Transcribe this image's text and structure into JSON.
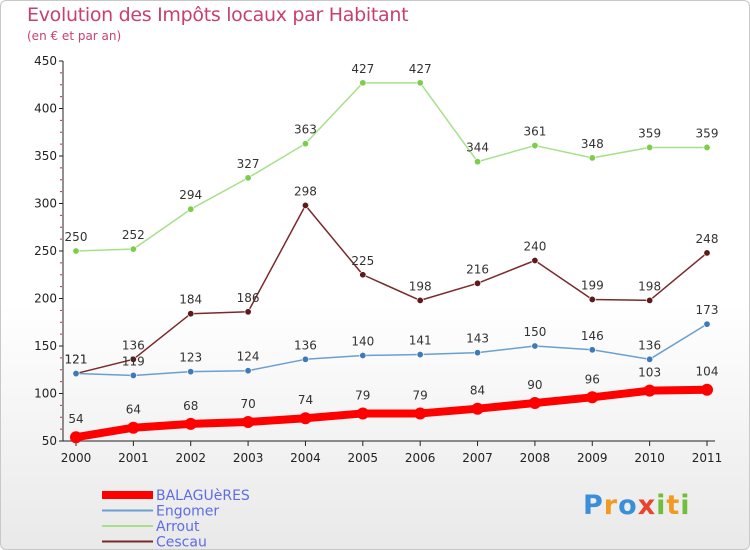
{
  "header": {
    "title": "Evolution des Impôts locaux par Habitant",
    "subtitle": "(en € et par an)"
  },
  "logo": {
    "text": "Proxiti"
  },
  "colors": {
    "axis": "#222222",
    "tick_marks": "#cc2244",
    "label_text": "#333333"
  },
  "chart_data": {
    "type": "line",
    "title": "Evolution des Impôts locaux par Habitant",
    "subtitle": "(en € et par an)",
    "xlabel": "",
    "ylabel": "",
    "x": [
      "2000",
      "2001",
      "2002",
      "2003",
      "2004",
      "2005",
      "2006",
      "2007",
      "2008",
      "2009",
      "2010",
      "2011"
    ],
    "ylim": [
      50,
      450
    ],
    "yticks": [
      "50",
      "100",
      "150",
      "200",
      "250",
      "300",
      "350",
      "400",
      "450"
    ],
    "grid": false,
    "legend": "bottom-left",
    "series": [
      {
        "name": "BALAGUèRES",
        "color": "#ff0000",
        "marker": "#ff0000",
        "legend_color": "#5d6de6",
        "thick": true,
        "values": [
          54,
          64,
          68,
          70,
          74,
          79,
          79,
          84,
          90,
          96,
          103,
          104
        ]
      },
      {
        "name": "Engomer",
        "color": "#6a9fcf",
        "marker": "#3e7ab8",
        "legend_color": "#5d6de6",
        "thick": false,
        "values": [
          121,
          119,
          123,
          124,
          136,
          140,
          141,
          143,
          150,
          146,
          136,
          173
        ]
      },
      {
        "name": "Arrout",
        "color": "#a6e08a",
        "marker": "#7ccd4a",
        "legend_color": "#5d6de6",
        "thick": false,
        "values": [
          250,
          252,
          294,
          327,
          363,
          427,
          427,
          344,
          361,
          348,
          359,
          359
        ]
      },
      {
        "name": "Cescau",
        "color": "#7a2a2a",
        "marker": "#5e1a1a",
        "legend_color": "#5d6de6",
        "thick": false,
        "values": [
          121,
          136,
          184,
          186,
          298,
          225,
          198,
          216,
          240,
          199,
          198,
          248
        ]
      }
    ]
  }
}
